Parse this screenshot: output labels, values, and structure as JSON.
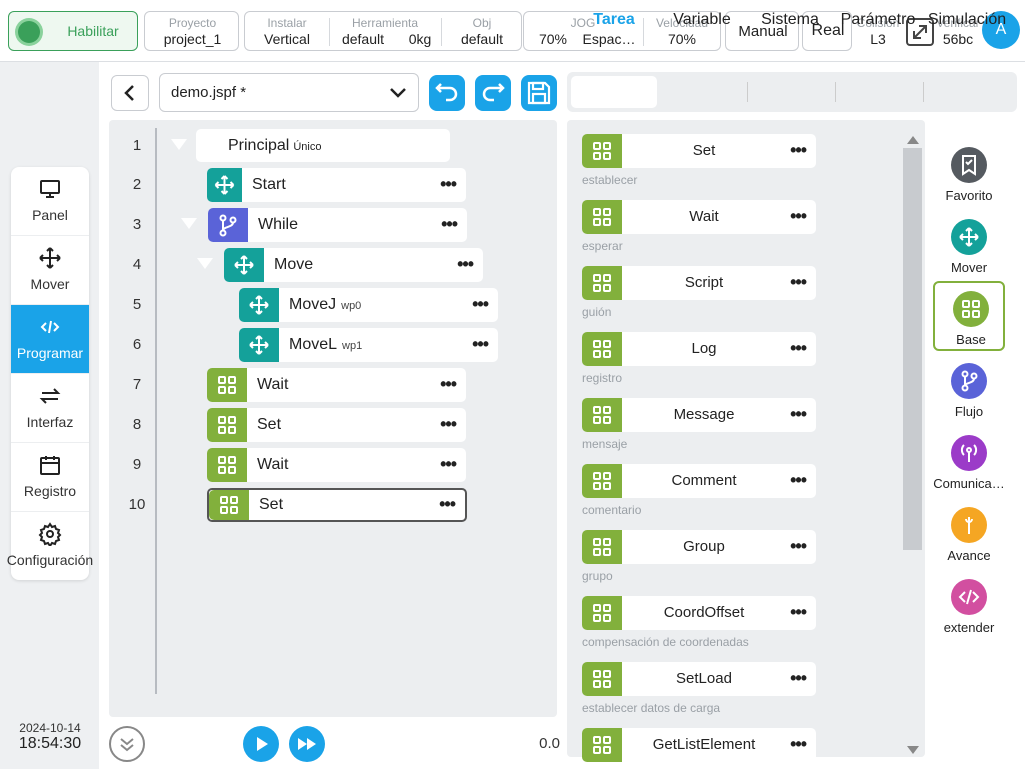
{
  "topbar": {
    "enable_label": "Habilitar",
    "project": {
      "label": "Proyecto",
      "value": "project_1"
    },
    "install": {
      "label": "Instalar",
      "value": "Vertical"
    },
    "tool": {
      "label": "Herramienta",
      "value": "default",
      "load": "0kg"
    },
    "obj": {
      "label": "Obj",
      "value": "default"
    },
    "jog": {
      "label": "JOG",
      "value": "70%",
      "space": "Espac…"
    },
    "speed": {
      "label": "Velocidad",
      "value": "70%"
    },
    "mode_label": "Manual",
    "real_label": "Real",
    "collision": {
      "label": "Colisión",
      "value": "L3"
    },
    "verify": {
      "label": "Verificar",
      "value": "56bc"
    },
    "avatar_letter": "A"
  },
  "sidenav": {
    "items": [
      {
        "label": "Panel",
        "icon": "monitor-icon"
      },
      {
        "label": "Mover",
        "icon": "move-icon"
      },
      {
        "label": "Programar",
        "icon": "code-icon",
        "active": true
      },
      {
        "label": "Interfaz",
        "icon": "swap-icon"
      },
      {
        "label": "Registro",
        "icon": "calendar-icon"
      },
      {
        "label": "Configuración",
        "icon": "gear-icon"
      }
    ]
  },
  "clock": {
    "date": "2024-10-14",
    "time": "18:54:30"
  },
  "editor": {
    "file_name": "demo.jspf *",
    "root": {
      "label": "Principal",
      "tag": "Único"
    },
    "lines": [
      {
        "n": "1"
      },
      {
        "n": "2",
        "label": "Start",
        "sub": ""
      },
      {
        "n": "3",
        "label": "While",
        "sub": ""
      },
      {
        "n": "4",
        "label": "Move",
        "sub": ""
      },
      {
        "n": "5",
        "label": "MoveJ",
        "sub": "wp0"
      },
      {
        "n": "6",
        "label": "MoveL",
        "sub": "wp1"
      },
      {
        "n": "7",
        "label": "Wait",
        "sub": ""
      },
      {
        "n": "8",
        "label": "Set",
        "sub": ""
      },
      {
        "n": "9",
        "label": "Wait",
        "sub": ""
      },
      {
        "n": "10",
        "label": "Set",
        "sub": ""
      }
    ],
    "progress_value": "0.0"
  },
  "tabs": [
    "Tarea",
    "Variable",
    "Sistema",
    "Parámetro",
    "Simulación"
  ],
  "commands": [
    {
      "name": "Set",
      "desc": "establecer"
    },
    {
      "name": "Wait",
      "desc": "esperar"
    },
    {
      "name": "Script",
      "desc": "guión"
    },
    {
      "name": "Log",
      "desc": "registro"
    },
    {
      "name": "Message",
      "desc": "mensaje"
    },
    {
      "name": "Comment",
      "desc": "comentario"
    },
    {
      "name": "Group",
      "desc": "grupo"
    },
    {
      "name": "CoordOffset",
      "desc": "compensación de coordenadas"
    },
    {
      "name": "SetLoad",
      "desc": "establecer datos de carga"
    },
    {
      "name": "GetListElement",
      "desc": ""
    }
  ],
  "categories": [
    {
      "label": "Favorito",
      "color": "#555a60",
      "icon": "bookmark-icon"
    },
    {
      "label": "Mover",
      "color": "#14a19a",
      "icon": "move-icon"
    },
    {
      "label": "Base",
      "color": "#82b03c",
      "icon": "grid-icon",
      "active": true
    },
    {
      "label": "Flujo",
      "color": "#5a63d8",
      "icon": "branch-icon"
    },
    {
      "label": "Comunica…",
      "color": "#9b3bc8",
      "icon": "signal-icon"
    },
    {
      "label": "Avance",
      "color": "#f5a623",
      "icon": "wrench-icon"
    },
    {
      "label": "extender",
      "color": "#d24fa0",
      "icon": "code-icon"
    }
  ],
  "colors": {
    "accent": "#1aa3e8",
    "move": "#14a19a",
    "flow": "#5a63d8",
    "base": "#82b03c",
    "enable": "#3aa05a"
  }
}
